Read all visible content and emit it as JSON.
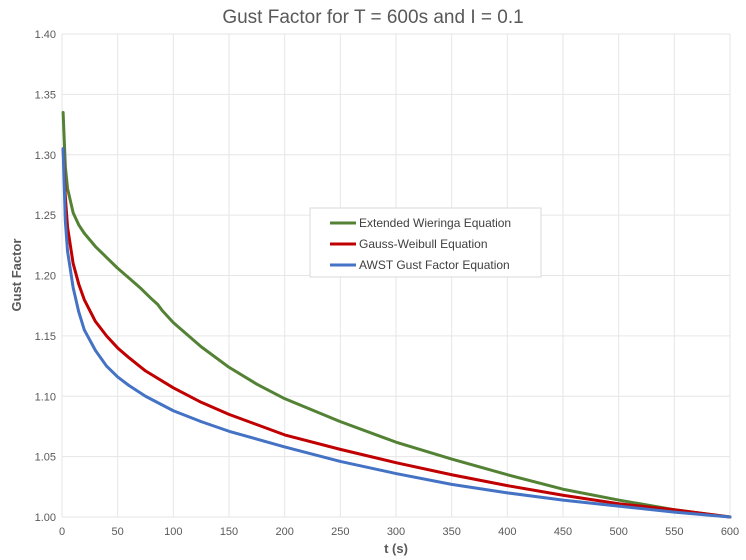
{
  "chart_data": {
    "type": "line",
    "title": "Gust Factor for T = 600s and I = 0.1",
    "xlabel": "t (s)",
    "ylabel": "Gust Factor",
    "xlim": [
      0,
      600
    ],
    "ylim": [
      1.0,
      1.4
    ],
    "x_ticks": [
      0,
      50,
      100,
      150,
      200,
      250,
      300,
      350,
      400,
      450,
      500,
      550,
      600
    ],
    "y_ticks": [
      "1.00",
      "1.05",
      "1.10",
      "1.15",
      "1.20",
      "1.25",
      "1.30",
      "1.35",
      "1.40"
    ],
    "grid": true,
    "legend_position": "center-right",
    "series": [
      {
        "name": "Extended Wieringa Equation",
        "color": "#548235",
        "x": [
          1,
          3,
          5,
          10,
          15,
          20,
          30,
          40,
          50,
          60,
          70,
          80,
          86,
          90,
          100,
          125,
          150,
          175,
          200,
          250,
          300,
          350,
          400,
          450,
          500,
          550,
          600
        ],
        "y": [
          1.335,
          1.29,
          1.272,
          1.252,
          1.242,
          1.235,
          1.224,
          1.215,
          1.206,
          1.198,
          1.19,
          1.181,
          1.176,
          1.171,
          1.161,
          1.141,
          1.124,
          1.11,
          1.098,
          1.079,
          1.062,
          1.048,
          1.035,
          1.023,
          1.014,
          1.006,
          1.0
        ]
      },
      {
        "name": "Gauss-Weibull Equation",
        "color": "#c00000",
        "x": [
          1,
          3,
          5,
          10,
          15,
          20,
          30,
          40,
          50,
          60,
          75,
          100,
          125,
          150,
          200,
          250,
          300,
          350,
          400,
          450,
          500,
          550,
          600
        ],
        "y": [
          1.305,
          1.265,
          1.24,
          1.21,
          1.193,
          1.18,
          1.162,
          1.15,
          1.14,
          1.132,
          1.121,
          1.107,
          1.095,
          1.085,
          1.068,
          1.056,
          1.045,
          1.035,
          1.026,
          1.018,
          1.011,
          1.006,
          1.0
        ]
      },
      {
        "name": "AWST Gust Factor Equation",
        "color": "#4472c4",
        "x": [
          1,
          3,
          5,
          10,
          15,
          20,
          30,
          40,
          50,
          60,
          75,
          100,
          125,
          150,
          200,
          250,
          300,
          350,
          400,
          450,
          500,
          550,
          600
        ],
        "y": [
          1.305,
          1.245,
          1.22,
          1.19,
          1.17,
          1.155,
          1.138,
          1.125,
          1.116,
          1.109,
          1.1,
          1.088,
          1.079,
          1.071,
          1.058,
          1.046,
          1.036,
          1.027,
          1.02,
          1.014,
          1.009,
          1.004,
          1.0
        ]
      }
    ]
  }
}
